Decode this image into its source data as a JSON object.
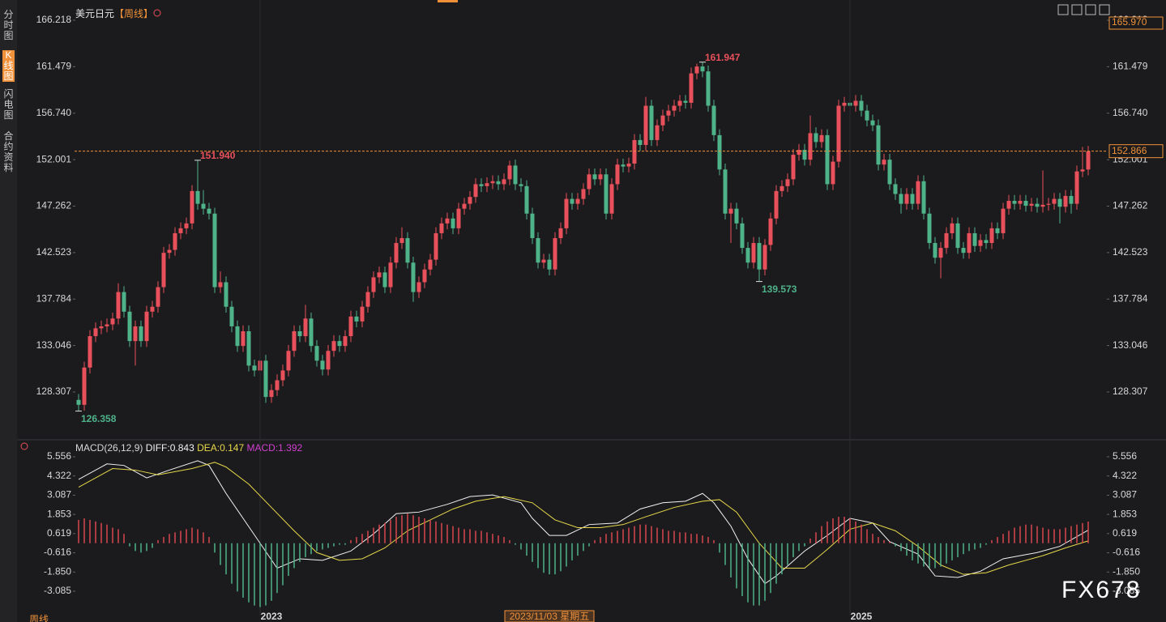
{
  "sidebar": [
    "分时图",
    "K线图",
    "闪电图",
    "合约资料"
  ],
  "period_tab": "周线",
  "watermark": "FX678",
  "chart_data": [
    {
      "type": "candlestick",
      "title": "美元日元",
      "period": "【周线】",
      "up_color": "#e8505b",
      "down_color": "#4fb38a",
      "ylim": [
        124.094,
        166.218
      ],
      "yticks": [
        166.218,
        161.479,
        {
          "value": 156.74,
          "label": "156.740"
        },
        152.001,
        147.262,
        142.523,
        137.784,
        133.046,
        128.307
      ],
      "open": [
        127.5,
        127.0,
        130.8,
        134.0,
        134.8,
        135.0,
        135.2,
        135.8,
        138.5,
        136.5,
        133.5,
        135.0,
        133.5,
        136.5,
        137.0,
        139.0,
        142.5,
        142.8,
        144.5,
        145.0,
        145.5,
        148.8,
        147.5,
        147.0,
        146.5,
        139.0,
        139.5,
        137.0,
        135.0,
        133.0,
        134.5,
        131.0,
        130.5,
        131.5,
        127.8,
        128.5,
        129.5,
        130.5,
        132.5,
        134.5,
        134.0,
        135.8,
        133.0,
        131.5,
        130.6,
        132.5,
        133.5,
        133.0,
        134.0,
        136.0,
        135.5,
        137.0,
        138.5,
        140.0,
        140.5,
        139.0,
        141.5,
        143.5,
        144.0,
        141.5,
        138.5,
        139.5,
        140.8,
        141.8,
        144.5,
        145.5,
        146.0,
        145.0,
        147.0,
        147.5,
        148.2,
        149.5,
        149.3,
        149.6,
        149.8,
        149.5,
        150.0,
        151.4,
        149.5,
        149.3,
        146.5,
        144.0,
        141.5,
        141.8,
        140.8,
        144.0,
        145.0,
        148.0,
        147.5,
        148.0,
        149.0,
        150.5,
        150.0,
        150.5,
        146.5,
        149.5,
        151.5,
        151.3,
        151.6,
        154.0,
        153.5,
        157.5,
        154.0,
        155.5,
        156.5,
        157.0,
        157.5,
        158.0,
        157.8,
        160.8,
        161.5,
        161.0,
        157.5,
        154.5,
        151.0,
        146.5,
        147.0,
        145.5,
        143.0,
        141.5,
        143.5,
        140.8,
        143.3,
        146.0,
        148.8,
        149.3,
        150.0,
        152.5,
        153.0,
        152.0,
        154.7,
        153.8,
        154.5,
        149.5,
        151.8,
        157.5,
        157.8,
        157.5,
        158.0,
        157.0,
        156.0,
        155.5,
        151.5,
        152.0,
        149.5,
        148.5,
        147.5,
        148.5,
        147.5,
        149.8,
        146.5,
        143.5,
        142.0,
        143.0,
        144.5,
        145.5,
        143.0,
        142.5,
        144.5,
        143.2,
        143.8,
        143.5,
        145.0,
        144.5,
        147.0,
        147.8,
        147.5,
        147.8,
        147.3,
        147.5,
        147.2,
        147.4,
        147.5,
        148.0,
        147.2,
        148.3,
        147.5,
        150.8,
        151.0
      ],
      "high": [
        128.1,
        131.4,
        134.6,
        135.4,
        135.6,
        135.8,
        136.4,
        139.4,
        139.1,
        137.1,
        135.6,
        135.6,
        137.1,
        137.6,
        139.6,
        143.1,
        143.4,
        145.1,
        145.6,
        146.1,
        149.4,
        151.94,
        148.9,
        147.6,
        147.1,
        140.6,
        140.1,
        137.6,
        135.6,
        135.1,
        135.1,
        131.6,
        132.1,
        132.1,
        129.1,
        130.1,
        131.1,
        133.1,
        135.1,
        135.1,
        137.2,
        136.4,
        133.6,
        132.1,
        133.1,
        134.1,
        134.1,
        134.6,
        136.6,
        136.6,
        137.6,
        139.1,
        140.6,
        141.1,
        141.1,
        142.1,
        144.1,
        145.1,
        144.6,
        142.1,
        140.1,
        141.4,
        142.4,
        145.1,
        146.1,
        146.6,
        146.6,
        147.6,
        148.1,
        148.8,
        150.1,
        150.1,
        150.2,
        150.4,
        150.4,
        150.6,
        151.9,
        152.0,
        150.1,
        149.9,
        147.1,
        144.6,
        142.4,
        142.4,
        144.6,
        145.6,
        148.6,
        148.6,
        148.6,
        149.6,
        151.1,
        151.1,
        151.1,
        151.1,
        150.1,
        152.1,
        152.1,
        152.2,
        154.6,
        154.6,
        158.4,
        158.1,
        156.1,
        157.1,
        157.6,
        158.1,
        158.6,
        158.6,
        161.4,
        161.8,
        161.947,
        161.6,
        158.1,
        155.1,
        151.6,
        147.6,
        147.6,
        146.1,
        143.6,
        144.1,
        144.1,
        143.9,
        146.6,
        149.4,
        149.9,
        150.6,
        153.1,
        153.6,
        153.6,
        156.5,
        155.3,
        155.1,
        155.1,
        152.4,
        158.1,
        158.4,
        158.4,
        158.6,
        158.6,
        157.6,
        156.6,
        156.1,
        152.6,
        152.6,
        150.1,
        149.1,
        149.1,
        149.1,
        150.4,
        150.4,
        147.1,
        144.1,
        143.6,
        145.1,
        146.1,
        146.1,
        143.6,
        145.1,
        145.1,
        144.4,
        144.4,
        145.6,
        145.6,
        147.6,
        148.4,
        148.4,
        148.4,
        148.4,
        148.1,
        148.1,
        150.9,
        148.1,
        148.6,
        148.6,
        148.9,
        148.9,
        151.4,
        153.3,
        153.4
      ],
      "low": [
        126.358,
        126.4,
        130.2,
        133.4,
        134.2,
        134.4,
        134.6,
        135.2,
        135.9,
        132.9,
        131.0,
        132.9,
        132.9,
        135.9,
        136.4,
        138.4,
        141.9,
        142.2,
        143.9,
        144.4,
        144.9,
        146.9,
        146.4,
        145.9,
        138.4,
        138.4,
        136.4,
        134.4,
        132.4,
        132.4,
        130.4,
        129.9,
        129.9,
        127.2,
        127.2,
        127.9,
        128.9,
        129.9,
        131.9,
        133.4,
        133.4,
        132.4,
        130.9,
        130.0,
        130.0,
        131.9,
        132.4,
        132.4,
        133.4,
        134.9,
        134.9,
        136.4,
        137.9,
        139.4,
        138.4,
        138.4,
        140.9,
        142.9,
        140.9,
        137.5,
        137.9,
        138.9,
        140.2,
        141.2,
        143.9,
        144.9,
        144.4,
        144.4,
        146.4,
        146.9,
        147.6,
        148.7,
        148.7,
        149.0,
        148.9,
        148.9,
        149.4,
        148.9,
        148.7,
        145.9,
        143.4,
        140.9,
        140.9,
        140.2,
        140.2,
        143.4,
        144.4,
        146.9,
        146.9,
        147.4,
        148.4,
        149.4,
        149.4,
        145.9,
        145.9,
        148.9,
        150.7,
        150.7,
        151.0,
        152.9,
        152.9,
        153.4,
        153.4,
        154.9,
        155.9,
        156.4,
        156.9,
        157.2,
        157.2,
        160.2,
        160.4,
        156.9,
        153.9,
        150.4,
        145.9,
        143.5,
        144.9,
        142.4,
        140.9,
        140.9,
        139.573,
        140.2,
        142.7,
        145.4,
        148.2,
        148.7,
        149.4,
        151.9,
        151.4,
        151.4,
        153.2,
        153.2,
        148.9,
        148.9,
        151.2,
        156.9,
        156.9,
        156.9,
        156.4,
        155.4,
        154.9,
        150.9,
        150.9,
        148.9,
        147.9,
        146.5,
        146.9,
        146.9,
        146.9,
        145.9,
        142.9,
        141.4,
        139.9,
        142.4,
        143.9,
        142.4,
        141.9,
        141.9,
        142.6,
        142.6,
        142.9,
        142.9,
        143.9,
        143.9,
        146.4,
        146.9,
        146.9,
        146.7,
        146.7,
        146.6,
        146.6,
        146.8,
        146.9,
        145.5,
        146.6,
        146.5,
        146.9,
        150.2,
        150.4
      ],
      "close": [
        127.0,
        130.8,
        134.0,
        134.8,
        135.0,
        135.2,
        135.8,
        138.5,
        136.5,
        133.5,
        135.0,
        133.5,
        136.5,
        137.0,
        139.0,
        142.5,
        142.8,
        144.5,
        145.0,
        145.5,
        148.8,
        147.5,
        147.0,
        146.5,
        139.0,
        139.5,
        137.0,
        135.0,
        133.0,
        134.5,
        131.0,
        130.5,
        131.5,
        127.8,
        128.5,
        129.5,
        130.5,
        132.5,
        134.5,
        134.0,
        135.8,
        133.0,
        131.5,
        130.6,
        132.5,
        133.5,
        133.0,
        134.0,
        136.0,
        135.5,
        137.0,
        138.5,
        140.0,
        140.5,
        139.0,
        141.5,
        143.5,
        144.0,
        141.5,
        138.5,
        139.5,
        140.8,
        141.8,
        144.5,
        145.5,
        146.0,
        145.0,
        147.0,
        147.5,
        148.2,
        149.5,
        149.3,
        149.6,
        149.8,
        149.5,
        150.0,
        151.4,
        149.5,
        149.3,
        146.5,
        144.0,
        141.5,
        141.8,
        140.8,
        144.0,
        145.0,
        148.0,
        147.5,
        148.0,
        149.0,
        150.5,
        150.0,
        150.5,
        146.5,
        149.5,
        151.5,
        151.3,
        151.6,
        154.0,
        153.5,
        157.5,
        154.0,
        155.5,
        156.5,
        157.0,
        157.5,
        158.0,
        157.8,
        160.8,
        161.5,
        161.0,
        157.5,
        154.5,
        151.0,
        146.5,
        147.0,
        145.5,
        143.0,
        141.5,
        143.5,
        140.8,
        143.3,
        146.0,
        148.8,
        149.3,
        150.0,
        152.5,
        153.0,
        152.0,
        154.7,
        153.8,
        154.5,
        149.5,
        151.8,
        157.5,
        157.8,
        157.5,
        158.0,
        157.0,
        156.0,
        155.5,
        151.5,
        152.0,
        149.5,
        148.5,
        147.5,
        148.5,
        147.5,
        149.8,
        146.5,
        143.5,
        142.0,
        143.0,
        144.5,
        145.5,
        143.0,
        142.5,
        144.5,
        143.2,
        143.8,
        143.5,
        145.0,
        144.5,
        147.0,
        147.8,
        147.5,
        147.8,
        147.3,
        147.5,
        147.2,
        147.4,
        147.5,
        148.0,
        147.2,
        148.3,
        147.5,
        150.8,
        151.0,
        152.866
      ],
      "annotations": [
        {
          "index": 0,
          "value": 126.358
        },
        {
          "index": 21,
          "value": 151.94,
          "label": "151.940"
        },
        {
          "index": 110,
          "value": 161.947
        },
        {
          "index": 120,
          "value": 139.573
        }
      ],
      "crosshair_price": {
        "value": 165.97,
        "label": "165.970"
      },
      "last_price_color": "#f0913a",
      "x_labels": [
        {
          "at": 34,
          "label": "2023"
        },
        {
          "at": 83,
          "label": "2023/11/03 星期五",
          "highlight": true
        },
        {
          "at": 138,
          "label": "2025"
        }
      ]
    },
    {
      "type": "macd",
      "title": "MACD(26,12,9)",
      "ylim": [
        -4.126,
        5.556
      ],
      "yticks": [
        5.556,
        4.322,
        3.087,
        1.853,
        0.619,
        -0.616,
        {
          "value": -1.85,
          "label": "-1.850"
        },
        -3.085
      ],
      "series": [
        {
          "name": "DIFF",
          "legend": "DIFF:0.843",
          "color": "#f2f2f2",
          "x": [
            0,
            5,
            8,
            12,
            16,
            21,
            23,
            26,
            29,
            32,
            35,
            39,
            43,
            48,
            52,
            56,
            60,
            65,
            69,
            73,
            78,
            80,
            83,
            86,
            90,
            95,
            99,
            103,
            107,
            110,
            112,
            115,
            118,
            121,
            123,
            128,
            132,
            136,
            140,
            143,
            148,
            151,
            155,
            159,
            163,
            169,
            173,
            178
          ],
          "values": [
            4.1,
            5.1,
            5.0,
            4.2,
            4.7,
            5.3,
            5.0,
            3.2,
            1.6,
            0.0,
            -1.6,
            -1.0,
            -1.1,
            -0.5,
            0.6,
            1.9,
            2.0,
            2.5,
            3.0,
            3.1,
            2.6,
            1.6,
            0.5,
            0.5,
            1.2,
            1.3,
            2.2,
            2.6,
            2.7,
            3.2,
            2.6,
            1.1,
            -1.0,
            -2.6,
            -2.1,
            -0.5,
            0.5,
            1.6,
            1.3,
            0.1,
            -0.7,
            -2.1,
            -2.2,
            -1.8,
            -1.0,
            -0.6,
            -0.2,
            0.843
          ]
        },
        {
          "name": "DEA",
          "legend": "DEA:0.147",
          "color": "#e6d84a",
          "x": [
            0,
            6,
            10,
            14,
            20,
            24,
            26,
            30,
            34,
            38,
            42,
            46,
            50,
            54,
            58,
            62,
            66,
            70,
            75,
            80,
            84,
            88,
            92,
            96,
            100,
            105,
            110,
            113,
            116,
            120,
            124,
            128,
            132,
            136,
            140,
            144,
            148,
            152,
            156,
            160,
            164,
            170,
            174,
            178
          ],
          "values": [
            3.6,
            4.8,
            4.7,
            4.4,
            4.8,
            5.2,
            4.9,
            3.8,
            2.3,
            0.8,
            -0.6,
            -1.1,
            -1.0,
            -0.3,
            0.8,
            1.5,
            2.2,
            2.7,
            3.0,
            2.6,
            1.5,
            1.0,
            1.0,
            1.2,
            1.7,
            2.3,
            2.7,
            2.8,
            2.0,
            0.0,
            -1.6,
            -1.6,
            -0.4,
            0.9,
            1.3,
            0.8,
            -0.2,
            -1.4,
            -2.0,
            -1.9,
            -1.4,
            -0.8,
            -0.3,
            0.147
          ]
        },
        {
          "name": "MACD",
          "legend": "MACD:1.392",
          "color": "#d040d0",
          "up_color": "#d9474f",
          "down_color": "#4fb38a",
          "values": [
            1.5,
            1.6,
            1.5,
            1.4,
            1.3,
            1.2,
            1.0,
            0.9,
            0.6,
            -0.2,
            -0.5,
            -0.6,
            -0.5,
            -0.3,
            0.2,
            0.4,
            0.6,
            0.7,
            0.8,
            0.9,
            1.0,
            0.9,
            0.7,
            0.4,
            -0.6,
            -1.4,
            -2.0,
            -2.6,
            -3.1,
            -3.5,
            -3.8,
            -4.0,
            -4.1,
            -4.0,
            -3.7,
            -3.2,
            -2.7,
            -2.1,
            -1.6,
            -1.2,
            -0.9,
            -0.7,
            -0.5,
            -0.4,
            -0.3,
            -0.2,
            -0.1,
            -0.1,
            0.2,
            0.4,
            0.6,
            0.8,
            1.0,
            1.2,
            1.3,
            1.5,
            1.7,
            1.8,
            1.9,
            1.8,
            1.7,
            1.6,
            1.5,
            1.4,
            1.3,
            1.2,
            1.1,
            1.0,
            0.9,
            0.9,
            0.8,
            0.8,
            0.7,
            0.6,
            0.5,
            0.4,
            0.2,
            -0.1,
            -0.4,
            -0.8,
            -1.2,
            -1.6,
            -1.9,
            -2.0,
            -2.0,
            -1.8,
            -1.5,
            -1.1,
            -0.8,
            -0.5,
            -0.2,
            0.2,
            0.4,
            0.6,
            0.7,
            0.8,
            0.9,
            1.0,
            1.1,
            1.2,
            1.2,
            1.1,
            1.0,
            0.9,
            0.8,
            0.8,
            0.7,
            0.7,
            0.6,
            0.6,
            0.5,
            0.4,
            0.2,
            -0.6,
            -1.4,
            -2.2,
            -2.9,
            -3.4,
            -3.8,
            -4.0,
            -4.0,
            -3.7,
            -3.2,
            -2.6,
            -2.0,
            -1.4,
            -0.9,
            -0.5,
            -0.2,
            0.3,
            0.7,
            1.1,
            1.4,
            1.6,
            1.7,
            1.7,
            1.6,
            1.4,
            1.2,
            0.9,
            0.6,
            0.4,
            0.2,
            0.1,
            -0.2,
            -0.5,
            -0.8,
            -1.1,
            -1.3,
            -1.5,
            -1.6,
            -1.6,
            -1.5,
            -1.3,
            -1.1,
            -0.9,
            -0.7,
            -0.5,
            -0.4,
            -0.3,
            -0.1,
            0.2,
            0.4,
            0.6,
            0.8,
            1.0,
            1.1,
            1.2,
            1.2,
            1.1,
            1.0,
            0.9,
            0.9,
            0.9,
            1.0,
            1.1,
            1.2,
            1.3,
            1.392
          ]
        }
      ]
    }
  ]
}
